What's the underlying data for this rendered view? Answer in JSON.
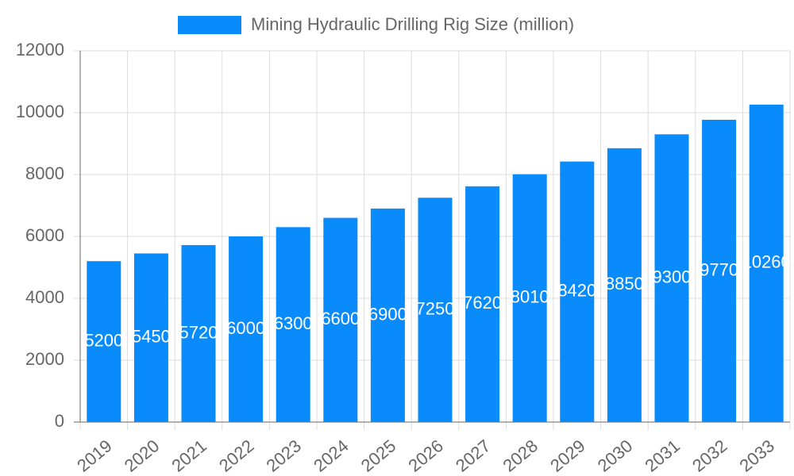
{
  "chart_data": {
    "type": "bar",
    "categories": [
      "2019",
      "2020",
      "2021",
      "2022",
      "2023",
      "2024",
      "2025",
      "2026",
      "2027",
      "2028",
      "2029",
      "2030",
      "2031",
      "2032",
      "2033"
    ],
    "series": [
      {
        "name": "Mining Hydraulic Drilling Rig Size (million)",
        "color": "#0a8bfc",
        "values": [
          5200,
          5450,
          5720,
          6000,
          6300,
          6600,
          6900,
          7250,
          7620,
          8010,
          8420,
          8850,
          9300,
          9770,
          10260
        ]
      }
    ],
    "ylim": [
      0,
      12000
    ],
    "yticks": [
      0,
      2000,
      4000,
      6000,
      8000,
      10000,
      12000
    ],
    "grid": true,
    "legend": "top"
  }
}
